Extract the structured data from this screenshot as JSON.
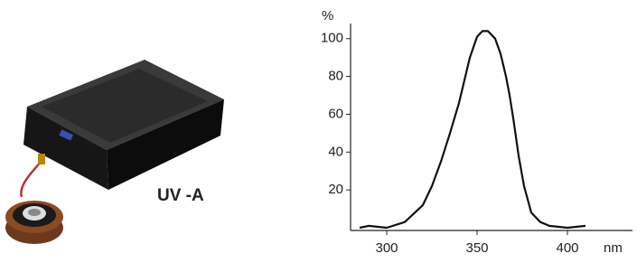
{
  "photo_caption": "UV -A",
  "chart_data": {
    "type": "line",
    "y_label": "%",
    "x_label": "nm",
    "x": [
      285,
      290,
      300,
      310,
      320,
      325,
      330,
      335,
      340,
      343,
      346,
      350,
      353,
      356,
      360,
      363,
      366,
      368,
      370,
      373,
      376,
      380,
      385,
      390,
      400,
      410
    ],
    "values": [
      0,
      1,
      0,
      3,
      12,
      22,
      35,
      50,
      66,
      78,
      90,
      101,
      104,
      104,
      100,
      92,
      80,
      70,
      58,
      38,
      22,
      8,
      3,
      1,
      0,
      1
    ],
    "color": "#111111",
    "xlim": [
      280,
      436
    ],
    "xticks": [
      300,
      350,
      400
    ],
    "ylim": [
      0,
      108
    ],
    "yticks": [
      20,
      40,
      60,
      80,
      100
    ],
    "grid": false
  }
}
